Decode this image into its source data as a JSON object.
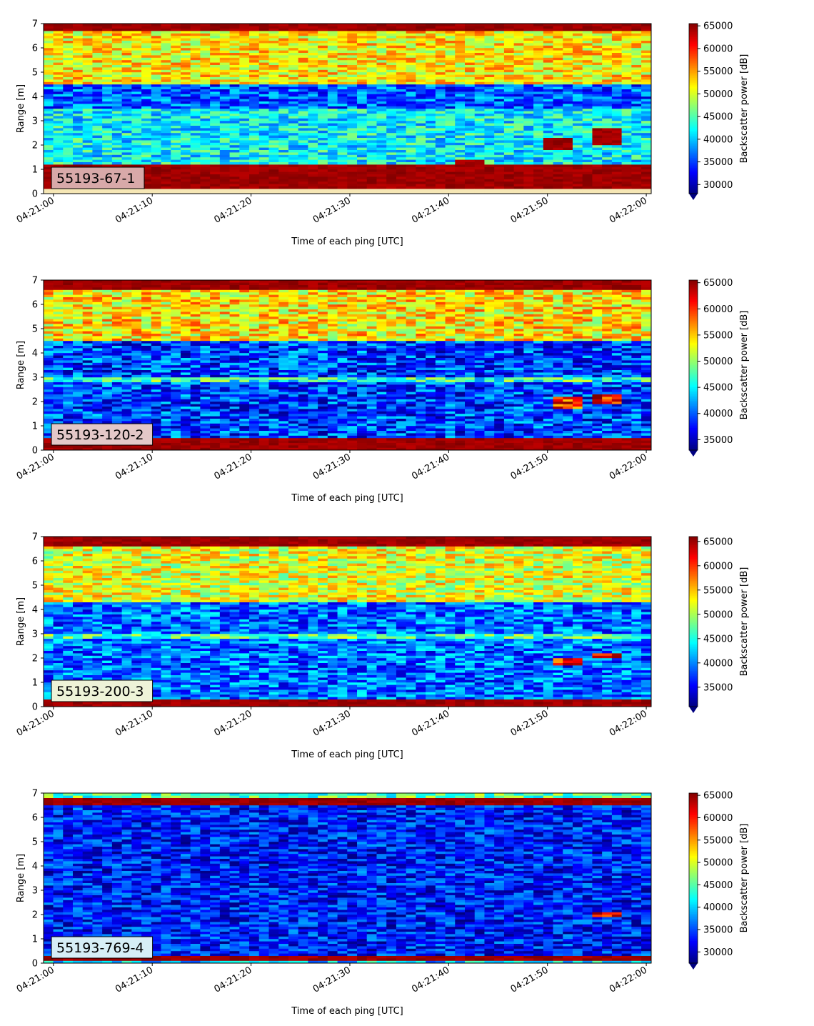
{
  "figure": {
    "xlabel": "Time of each ping [UTC]",
    "ylabel": "Range [m]",
    "colorbar_label": "Backscatter power [dB]",
    "x_ticks": [
      "04:21:00",
      "04:21:10",
      "04:21:20",
      "04:21:30",
      "04:21:40",
      "04:21:50",
      "04:22:00"
    ],
    "y_ticks": [
      "0",
      "1",
      "2",
      "3",
      "4",
      "5",
      "6",
      "7"
    ],
    "colormap": "jet"
  },
  "chart_data": [
    {
      "type": "heatmap",
      "label": "55193-67-1",
      "label_box_color": "#d8a9a9",
      "xlabel": "Time of each ping [UTC]",
      "ylabel": "Range [m]",
      "xlim": [
        "04:20:59",
        "04:22:00.5"
      ],
      "ylim": [
        0,
        7
      ],
      "colorbar": {
        "label": "Backscatter power [dB]",
        "ticks": [
          "65000",
          "60000",
          "55000",
          "50000",
          "45000",
          "40000",
          "35000",
          "30000"
        ],
        "range": [
          28000,
          65500
        ],
        "extend": "min"
      },
      "features": [
        {
          "range_m": [
            0.0,
            0.25
          ],
          "level": "bottom-strip"
        },
        {
          "range_m": [
            0.25,
            1.2
          ],
          "level": 65000
        },
        {
          "range_m": [
            6.7,
            7.0
          ],
          "level": 65000
        },
        {
          "range_m": [
            4.5,
            6.7
          ],
          "level": 52000
        },
        {
          "range_m": [
            3.5,
            4.5
          ],
          "level": 36000
        },
        {
          "range_m": [
            1.2,
            3.5
          ],
          "level": 42000
        },
        {
          "time": "04:21:51",
          "range_m": [
            1.8,
            2.3
          ],
          "level": 64000
        },
        {
          "time": "04:21:56",
          "range_m": [
            2.0,
            2.7
          ],
          "level": 65000
        },
        {
          "time": "04:21:42",
          "range_m": [
            1.1,
            1.4
          ],
          "level": 65000
        }
      ]
    },
    {
      "type": "heatmap",
      "label": "55193-120-2",
      "label_box_color": "#e3c8c8",
      "xlabel": "Time of each ping [UTC]",
      "ylabel": "Range [m]",
      "xlim": [
        "04:20:59",
        "04:22:00.5"
      ],
      "ylim": [
        0,
        7
      ],
      "colorbar": {
        "label": "Backscatter power [dB]",
        "ticks": [
          "65000",
          "60000",
          "55000",
          "50000",
          "45000",
          "40000",
          "35000"
        ],
        "range": [
          33000,
          65500
        ],
        "extend": "min"
      },
      "features": [
        {
          "range_m": [
            0.0,
            0.5
          ],
          "level": 65000
        },
        {
          "range_m": [
            6.6,
            7.0
          ],
          "level": 65000
        },
        {
          "range_m": [
            4.5,
            6.6
          ],
          "level": 54000
        },
        {
          "range_m": [
            0.5,
            4.5
          ],
          "level": 39000
        },
        {
          "range_m": [
            2.8,
            3.0
          ],
          "level": 47000
        },
        {
          "time": "04:21:52",
          "range_m": [
            1.7,
            2.2
          ],
          "level": 60000
        },
        {
          "time": "04:21:56",
          "range_m": [
            1.9,
            2.3
          ],
          "level": 62000
        }
      ]
    },
    {
      "type": "heatmap",
      "label": "55193-200-3",
      "label_box_color": "#eef3d8",
      "xlabel": "Time of each ping [UTC]",
      "ylabel": "Range [m]",
      "xlim": [
        "04:20:59",
        "04:22:00.5"
      ],
      "ylim": [
        0,
        7
      ],
      "colorbar": {
        "label": "Backscatter power [dB]",
        "ticks": [
          "65000",
          "60000",
          "55000",
          "50000",
          "45000",
          "40000",
          "35000"
        ],
        "range": [
          31000,
          66000
        ],
        "extend": "min"
      },
      "features": [
        {
          "range_m": [
            0.0,
            0.35
          ],
          "level": 65000
        },
        {
          "range_m": [
            6.6,
            7.0
          ],
          "level": 65000
        },
        {
          "range_m": [
            4.3,
            6.6
          ],
          "level": 52000
        },
        {
          "range_m": [
            0.35,
            4.3
          ],
          "level": 39000
        },
        {
          "range_m": [
            2.8,
            3.0
          ],
          "level": 47000
        },
        {
          "time": "04:21:52",
          "range_m": [
            1.7,
            2.0
          ],
          "level": 60000
        },
        {
          "time": "04:21:56",
          "range_m": [
            2.0,
            2.2
          ],
          "level": 62000
        }
      ]
    },
    {
      "type": "heatmap",
      "label": "55193-769-4",
      "label_box_color": "#d6eef6",
      "xlabel": "Time of each ping [UTC]",
      "ylabel": "Range [m]",
      "xlim": [
        "04:20:59",
        "04:22:00.5"
      ],
      "ylim": [
        0,
        7
      ],
      "colorbar": {
        "label": "Backscatter power [dB]",
        "ticks": [
          "65000",
          "60000",
          "55000",
          "50000",
          "45000",
          "40000",
          "35000",
          "30000"
        ],
        "range": [
          27500,
          65500
        ],
        "extend": "min"
      },
      "features": [
        {
          "range_m": [
            0.15,
            0.35
          ],
          "level": 65000
        },
        {
          "range_m": [
            6.5,
            6.8
          ],
          "level": 65000
        },
        {
          "range_m": [
            6.8,
            7.0
          ],
          "level": 45000
        },
        {
          "range_m": [
            0.35,
            6.5
          ],
          "level": 33000
        },
        {
          "time": "04:21:56",
          "range_m": [
            1.9,
            2.1
          ],
          "level": 60000
        }
      ]
    }
  ]
}
